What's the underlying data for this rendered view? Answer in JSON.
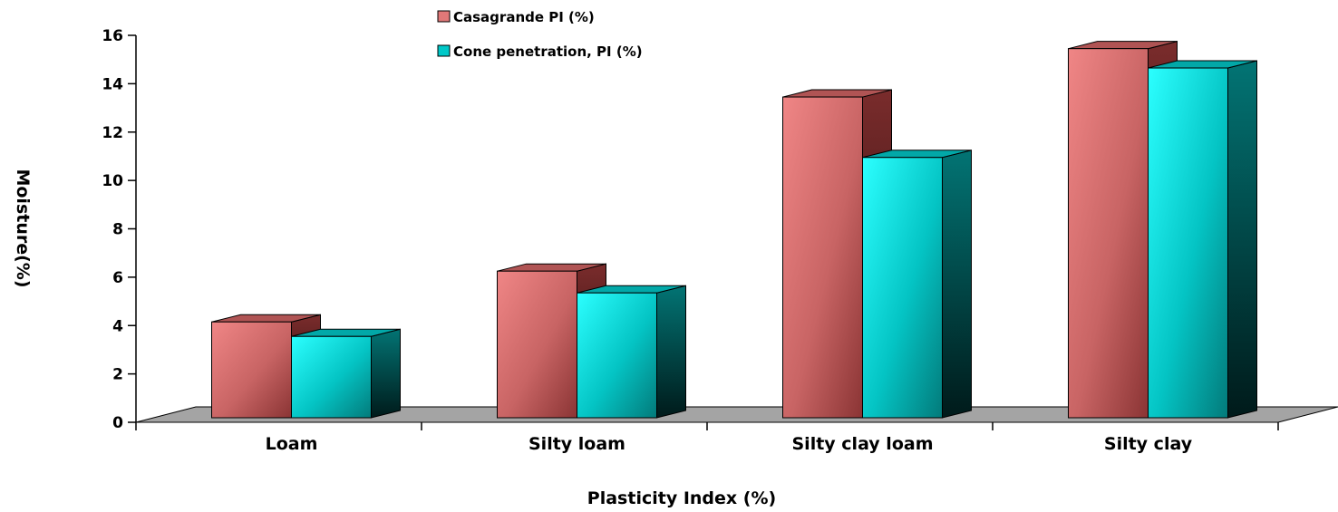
{
  "chart_data": {
    "type": "bar",
    "title": "",
    "xlabel": "Plasticity Index (%)",
    "ylabel": "Moisture(%)",
    "categories": [
      "Loam",
      "Silty loam",
      "Silty clay loam",
      "Silty clay"
    ],
    "series": [
      {
        "name": "Casagrande PI (%)",
        "values": [
          4.3,
          6.4,
          13.6,
          15.6
        ],
        "color": "#e07878"
      },
      {
        "name": "Cone penetration, PI (%)",
        "values": [
          3.7,
          5.5,
          11.1,
          14.8
        ],
        "color": "#00c8c8"
      }
    ],
    "ylim": [
      0,
      16
    ],
    "yticks": [
      0,
      2,
      4,
      6,
      8,
      10,
      12,
      14,
      16
    ],
    "grid": false,
    "legend": "top-center",
    "style": "3d-column"
  }
}
